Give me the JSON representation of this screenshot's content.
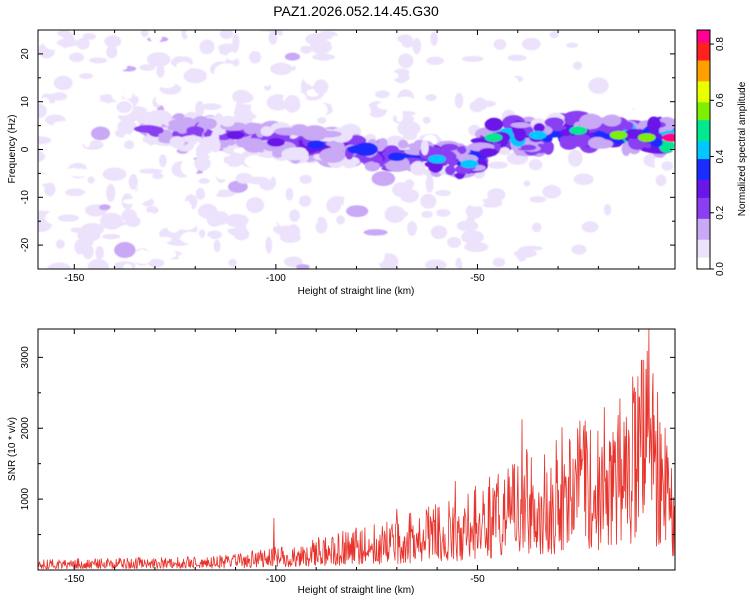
{
  "colors": {
    "snr_line": "#e8322b",
    "axis": "#000000",
    "colormap": [
      "#ffffff",
      "#ece2fb",
      "#c9a8f6",
      "#8a3ff2",
      "#6a16e8",
      "#1a2cff",
      "#00c8ff",
      "#00e890",
      "#7cf000",
      "#e8ff00",
      "#ffa000",
      "#ff2020",
      "#ff0090"
    ]
  },
  "chart_data": [
    {
      "type": "heatmap",
      "title": "PAZ1.2026.052.14.45.G30",
      "xlabel": "Height of straight line (km)",
      "ylabel": "Frequency (Hz)",
      "xlim": [
        -159,
        -1
      ],
      "ylim": [
        -25,
        25
      ],
      "xticks": [
        -150,
        -100,
        -50
      ],
      "xtick_labels": [
        "-150",
        "-100",
        "-50"
      ],
      "yticks": [
        -20,
        -10,
        0,
        10,
        20
      ],
      "ytick_labels": [
        "-20",
        "-10",
        "0",
        "10",
        "20"
      ],
      "colorbar": {
        "label": "Normalized spectral amplitude",
        "range": [
          0,
          0.85
        ],
        "ticks": [
          0.0,
          0.2,
          0.4,
          0.6,
          0.8
        ],
        "tick_labels": [
          "0.0",
          "0.2",
          "0.4",
          "0.6",
          "0.8"
        ]
      },
      "ridge": [
        {
          "x": -130,
          "y": 4.0,
          "amp": 0.22
        },
        {
          "x": -120,
          "y": 4.0,
          "amp": 0.24
        },
        {
          "x": -110,
          "y": 3.0,
          "amp": 0.25
        },
        {
          "x": -100,
          "y": 1.5,
          "amp": 0.28
        },
        {
          "x": -90,
          "y": 1.0,
          "amp": 0.32
        },
        {
          "x": -80,
          "y": 0.0,
          "amp": 0.36
        },
        {
          "x": -70,
          "y": -1.5,
          "amp": 0.38
        },
        {
          "x": -60,
          "y": -2.0,
          "amp": 0.42
        },
        {
          "x": -52,
          "y": -3.0,
          "amp": 0.45
        },
        {
          "x": -46,
          "y": 2.5,
          "amp": 0.52
        },
        {
          "x": -35,
          "y": 3.0,
          "amp": 0.45
        },
        {
          "x": -25,
          "y": 4.0,
          "amp": 0.48
        },
        {
          "x": -15,
          "y": 3.0,
          "amp": 0.55
        },
        {
          "x": -8,
          "y": 2.5,
          "amp": 0.6
        },
        {
          "x": -2,
          "y": 2.5,
          "amp": 0.85
        }
      ]
    },
    {
      "type": "line",
      "xlabel": "Height of straight line (km)",
      "ylabel": "SNR (10 * v/v)",
      "xlim": [
        -159,
        -1
      ],
      "ylim": [
        0,
        3400
      ],
      "xticks": [
        -150,
        -100,
        -50
      ],
      "xtick_labels": [
        "-150",
        "-100",
        "-50"
      ],
      "yticks": [
        1000,
        2000,
        3000
      ],
      "ytick_labels": [
        "1000",
        "2000",
        "3000"
      ],
      "envelope": [
        {
          "x": -159,
          "y": 150
        },
        {
          "x": -140,
          "y": 170
        },
        {
          "x": -120,
          "y": 200
        },
        {
          "x": -110,
          "y": 230
        },
        {
          "x": -100,
          "y": 330
        },
        {
          "x": -90,
          "y": 450
        },
        {
          "x": -80,
          "y": 600
        },
        {
          "x": -70,
          "y": 750
        },
        {
          "x": -60,
          "y": 950
        },
        {
          "x": -50,
          "y": 1200
        },
        {
          "x": -40,
          "y": 1650
        },
        {
          "x": -30,
          "y": 1900
        },
        {
          "x": -20,
          "y": 2300
        },
        {
          "x": -12,
          "y": 2800
        },
        {
          "x": -8,
          "y": 3400
        },
        {
          "x": -4,
          "y": 2100
        },
        {
          "x": -1,
          "y": 1200
        }
      ],
      "peaks": [
        {
          "x": -100.5,
          "y": 730
        },
        {
          "x": -70.0,
          "y": 860
        },
        {
          "x": -55.5,
          "y": 1250
        },
        {
          "x": -39.0,
          "y": 2120
        },
        {
          "x": -29.0,
          "y": 2010
        },
        {
          "x": -7.5,
          "y": 3390
        },
        {
          "x": -11.0,
          "y": 2570
        },
        {
          "x": -3.5,
          "y": 2000
        }
      ]
    }
  ]
}
